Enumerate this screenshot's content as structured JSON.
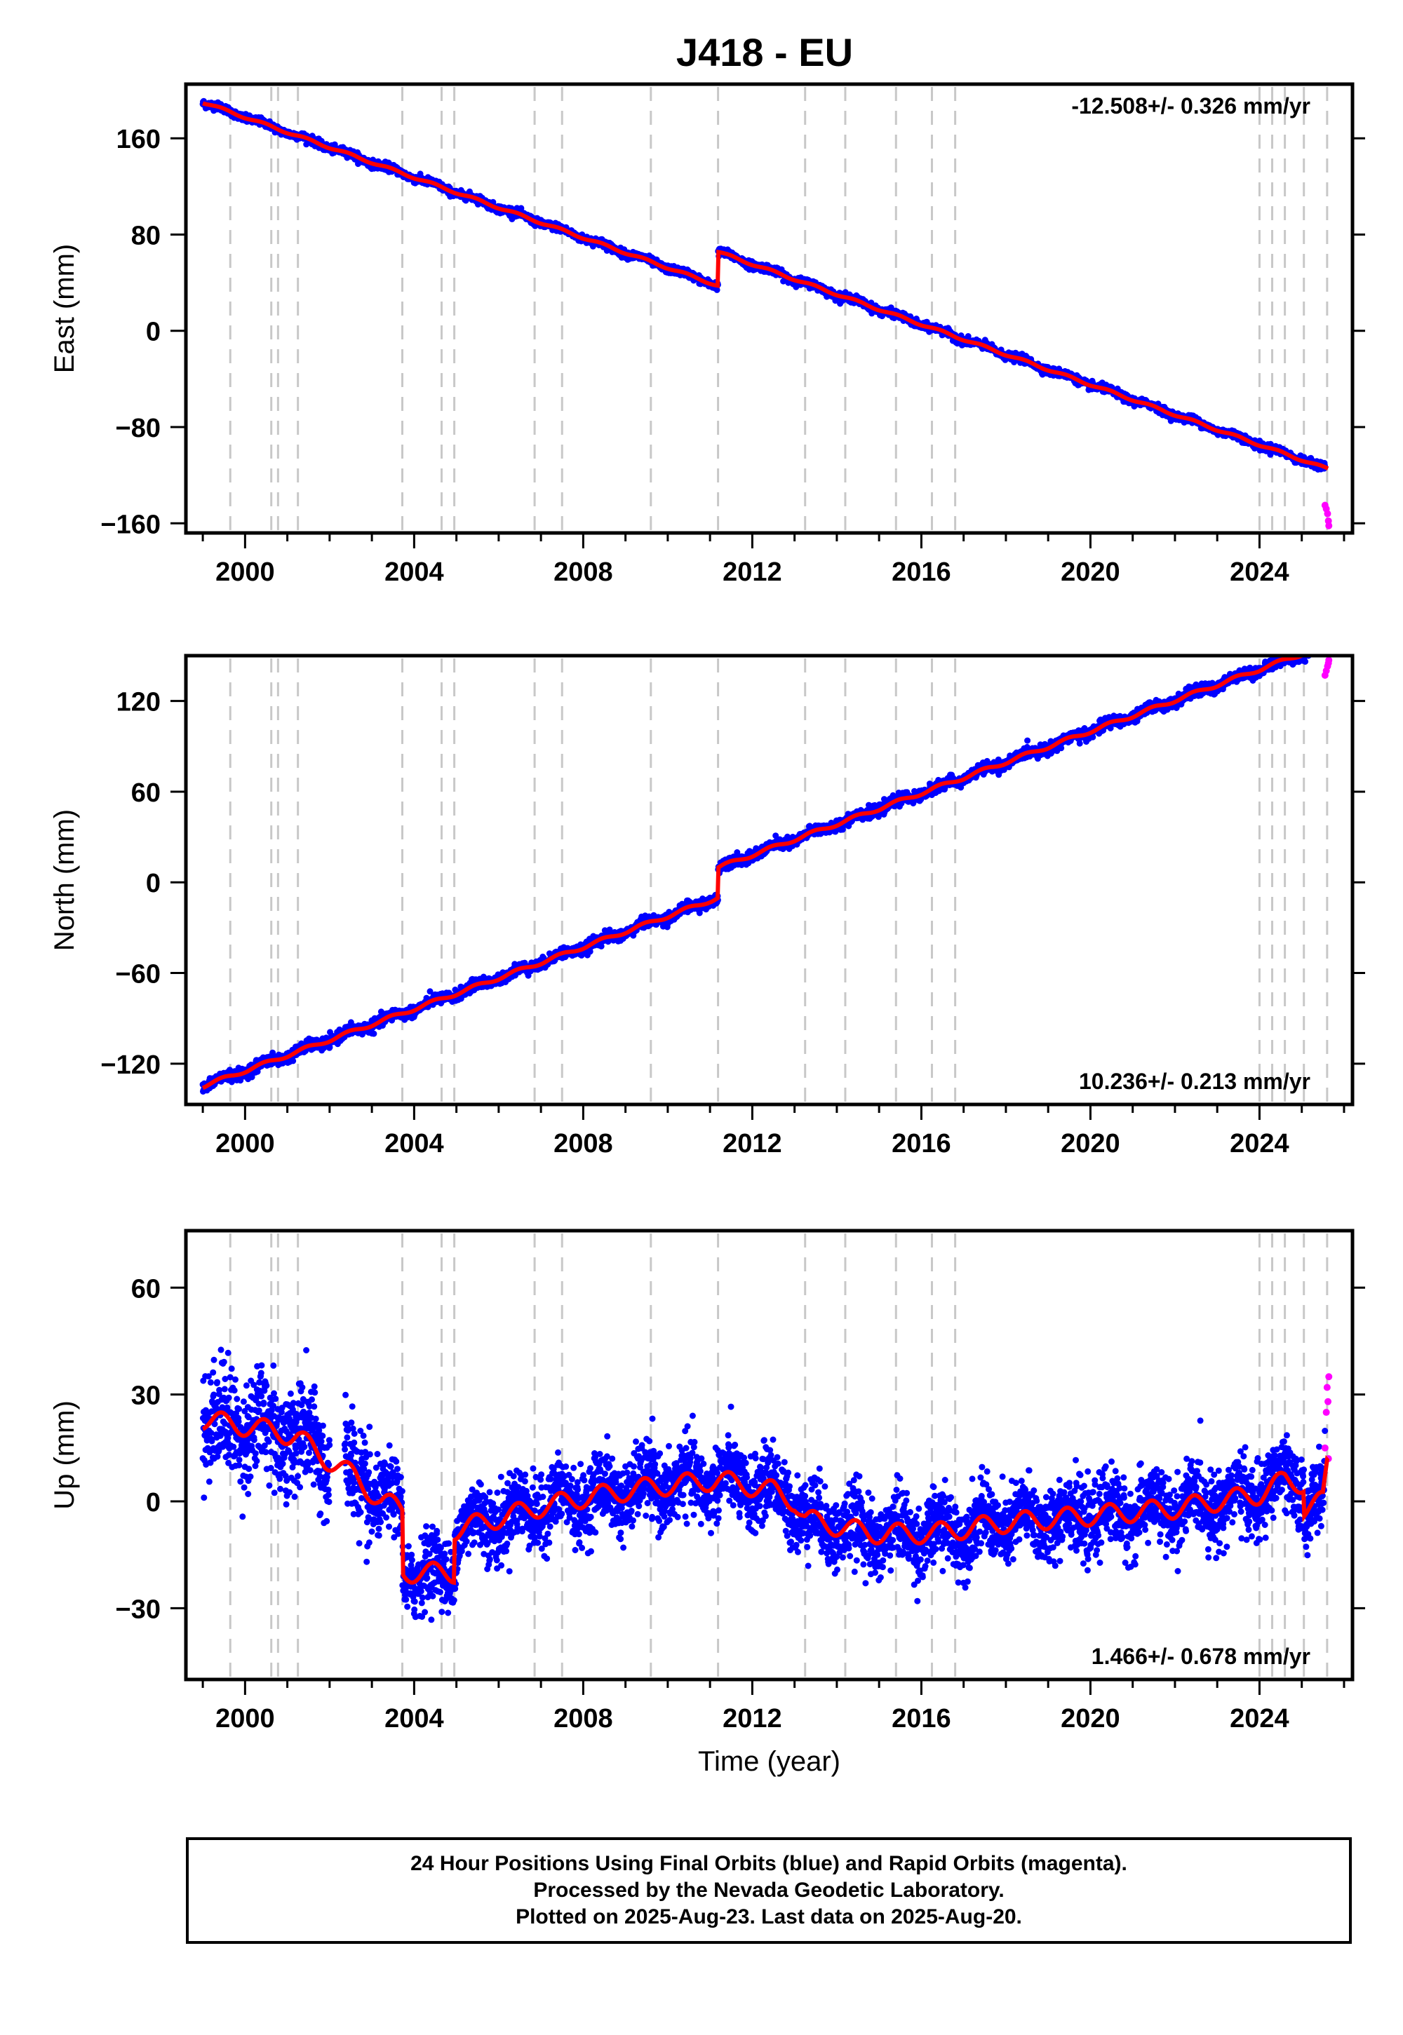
{
  "title": "J418 - EU",
  "footer": {
    "line1": "24 Hour Positions Using Final Orbits (blue) and Rapid Orbits (magenta).",
    "line2": "Processed by the Nevada Geodetic Laboratory.",
    "line3": "Plotted on 2025-Aug-23. Last data on 2025-Aug-20."
  },
  "colors": {
    "final": "#0000ff",
    "rapid": "#ff00ff",
    "model": "#ff0000",
    "steps": "#c8c8c8"
  },
  "chart_data": [
    {
      "type": "scatter",
      "name": "east",
      "ylabel": "East (mm)",
      "xlabel": "",
      "xlim": [
        1998.6,
        2026.2
      ],
      "ylim": [
        -168,
        205
      ],
      "yticks": [
        -160,
        -80,
        0,
        80,
        160
      ],
      "xticks": [
        2000,
        2004,
        2008,
        2012,
        2016,
        2020,
        2024
      ],
      "rate": "-12.508+/- 0.326 mm/yr",
      "rate_pos": "top-right",
      "grid": false,
      "steps": [
        1999.65,
        2000.62,
        2000.78,
        2001.25,
        2003.72,
        2004.65,
        2004.95,
        2006.85,
        2007.5,
        2009.6,
        2011.19,
        2013.25,
        2014.2,
        2015.4,
        2016.25,
        2016.8,
        2024.0,
        2024.3,
        2024.6,
        2025.05,
        2025.6
      ],
      "model": {
        "t0": 1999,
        "y0": 190,
        "rate": -12.508,
        "offsets": [
          [
            2011.19,
            28
          ]
        ],
        "seasonal": 1.2,
        "noise": 1.6
      },
      "rapid": [
        [
          2025.55,
          -145
        ],
        [
          2025.58,
          -148
        ],
        [
          2025.61,
          -152
        ],
        [
          2025.63,
          -158
        ],
        [
          2025.64,
          -162
        ]
      ]
    },
    {
      "type": "scatter",
      "name": "north",
      "ylabel": "North (mm)",
      "xlabel": "",
      "xlim": [
        1998.6,
        2026.2
      ],
      "ylim": [
        -147,
        150
      ],
      "yticks": [
        -120,
        -60,
        0,
        60,
        120
      ],
      "xticks": [
        2000,
        2004,
        2008,
        2012,
        2016,
        2020,
        2024
      ],
      "rate": "10.236+/- 0.213 mm/yr",
      "rate_pos": "bottom-right",
      "grid": false,
      "steps": [
        1999.65,
        2000.62,
        2000.78,
        2001.25,
        2003.72,
        2004.65,
        2004.95,
        2006.85,
        2007.5,
        2009.6,
        2011.19,
        2013.25,
        2014.2,
        2015.4,
        2016.25,
        2016.8,
        2024.0,
        2024.3,
        2024.6,
        2025.05,
        2025.6
      ],
      "model": {
        "t0": 1999,
        "y0": -135,
        "rate": 10.236,
        "offsets": [
          [
            2011.19,
            20
          ]
        ],
        "seasonal": 1.5,
        "noise": 1.8
      },
      "rapid": [
        [
          2025.55,
          137
        ],
        [
          2025.58,
          140
        ],
        [
          2025.61,
          143
        ],
        [
          2025.63,
          145
        ],
        [
          2025.64,
          147
        ]
      ]
    },
    {
      "type": "scatter",
      "name": "up",
      "ylabel": "Up (mm)",
      "xlabel": "Time (year)",
      "xlim": [
        1998.6,
        2026.2
      ],
      "ylim": [
        -50,
        76
      ],
      "yticks": [
        -30,
        0,
        30,
        60
      ],
      "xticks": [
        2000,
        2004,
        2008,
        2012,
        2016,
        2020,
        2024
      ],
      "rate": "1.466+/- 0.678 mm/yr",
      "rate_pos": "bottom-right",
      "grid": false,
      "steps": [
        1999.65,
        2000.62,
        2000.78,
        2001.25,
        2003.72,
        2004.65,
        2004.95,
        2006.85,
        2007.5,
        2009.6,
        2011.19,
        2013.25,
        2014.2,
        2015.4,
        2016.25,
        2016.8,
        2024.0,
        2024.3,
        2024.6,
        2025.05,
        2025.6
      ],
      "model_line": [
        [
          1999.0,
          23
        ],
        [
          2000.6,
          20
        ],
        [
          2001.25,
          18
        ],
        [
          2001.9,
          12
        ],
        [
          2002.6,
          7
        ],
        [
          2003.2,
          0
        ],
        [
          2003.72,
          -2
        ],
        [
          2003.73,
          -20
        ],
        [
          2004.95,
          -20
        ],
        [
          2004.96,
          -8
        ],
        [
          2006.85,
          -2
        ],
        [
          2008.0,
          1
        ],
        [
          2009.6,
          4
        ],
        [
          2011.19,
          6
        ],
        [
          2012.5,
          3
        ],
        [
          2013.0,
          0
        ],
        [
          2013.25,
          -5
        ],
        [
          2014.8,
          -9
        ],
        [
          2016.25,
          -9
        ],
        [
          2018.0,
          -6
        ],
        [
          2020.0,
          -4
        ],
        [
          2022.0,
          -2
        ],
        [
          2024.0,
          2
        ],
        [
          2024.6,
          6
        ],
        [
          2025.05,
          5
        ],
        [
          2025.06,
          -2
        ],
        [
          2025.5,
          0
        ],
        [
          2025.6,
          10
        ]
      ],
      "seasonal": 3.5,
      "noise": 5.0,
      "rapid": [
        [
          2025.55,
          15
        ],
        [
          2025.58,
          25
        ],
        [
          2025.6,
          32
        ],
        [
          2025.62,
          28
        ],
        [
          2025.63,
          12
        ],
        [
          2025.64,
          35
        ]
      ]
    }
  ]
}
